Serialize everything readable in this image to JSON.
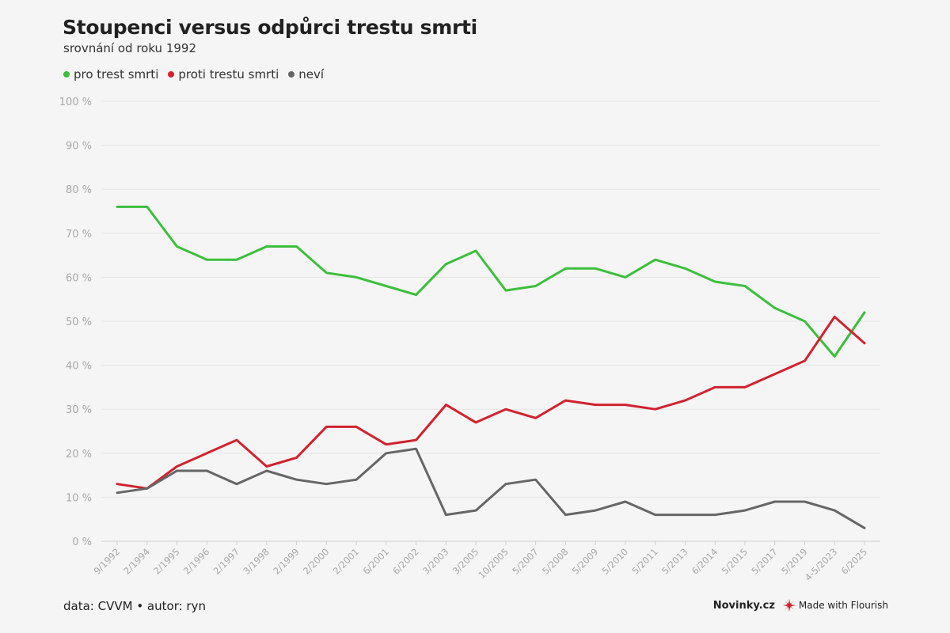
{
  "chart_data": {
    "type": "line",
    "title": "Stoupenci versus odpůrci trestu smrti",
    "subtitle": "srovnání od roku 1992",
    "categories": [
      "9/1992",
      "2/1994",
      "2/1995",
      "2/1996",
      "2/1997",
      "3/1998",
      "2/1999",
      "2/2000",
      "2/2001",
      "6/2001",
      "6/2002",
      "3/2003",
      "3/2005",
      "10/2005",
      "5/2007",
      "5/2008",
      "5/2009",
      "5/2010",
      "5/2011",
      "5/2013",
      "6/2014",
      "5/2015",
      "5/2017",
      "5/2019",
      "4-5/2023",
      "6/2025"
    ],
    "series": [
      {
        "name": "pro trest smrti",
        "color": "#3cbf3c",
        "values": [
          76,
          76,
          67,
          64,
          64,
          67,
          67,
          61,
          60,
          58,
          56,
          63,
          66,
          57,
          58,
          62,
          62,
          60,
          64,
          62,
          59,
          58,
          53,
          50,
          42,
          52
        ]
      },
      {
        "name": "proti trestu smrti",
        "color": "#d0232f",
        "values": [
          13,
          12,
          17,
          20,
          23,
          17,
          19,
          26,
          26,
          22,
          23,
          31,
          27,
          30,
          28,
          32,
          31,
          31,
          30,
          32,
          35,
          35,
          38,
          41,
          51,
          45
        ]
      },
      {
        "name": "neví",
        "color": "#666666",
        "values": [
          11,
          12,
          16,
          16,
          13,
          16,
          14,
          13,
          14,
          20,
          21,
          6,
          7,
          13,
          14,
          6,
          7,
          9,
          6,
          6,
          6,
          7,
          9,
          9,
          7,
          3
        ]
      }
    ],
    "ylim": [
      0,
      100
    ],
    "yticks": [
      0,
      10,
      20,
      30,
      40,
      50,
      60,
      70,
      80,
      90,
      100
    ],
    "ytick_suffix": " %",
    "grid": true,
    "legend_position": "top-left"
  },
  "footer": {
    "source": "data: CVVM • autor: ryn",
    "brand": "Novinky.cz",
    "flourish": "Made with Flourish"
  }
}
